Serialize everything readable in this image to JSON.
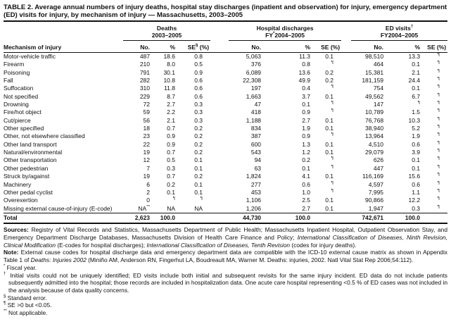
{
  "table": {
    "title": "TABLE 2. Average annual numbers of injury deaths, hospital stay discharges (inpatient and observation) for injury, emergency department (ED) visits for injury, by mechanism of injury — Massachusetts, 2003–2005",
    "row_header": "Mechanism of injury",
    "groups": [
      {
        "name": "deaths",
        "title": [
          {
            "t": "Deaths"
          }
        ],
        "subtitle": [
          {
            "t": "2003–2005"
          }
        ],
        "cols": [
          [
            {
              "t": "No."
            }
          ],
          [
            {
              "t": "%"
            }
          ],
          [
            {
              "t": "SE"
            },
            {
              "t": "§",
              "sup": true
            },
            {
              "t": " (%)"
            }
          ]
        ]
      },
      {
        "name": "hospital-discharges",
        "title": [
          {
            "t": "Hospital discharges"
          }
        ],
        "subtitle": [
          {
            "t": "FY"
          },
          {
            "t": "*",
            "sup": true
          },
          {
            "t": "2004–2005"
          }
        ],
        "cols": [
          [
            {
              "t": "No."
            }
          ],
          [
            {
              "t": "%"
            }
          ],
          [
            {
              "t": "SE (%)"
            }
          ]
        ]
      },
      {
        "name": "ed-visits",
        "title": [
          {
            "t": "ED visits"
          },
          {
            "t": "†",
            "sup": true
          }
        ],
        "subtitle": [
          {
            "t": "FY2004–2005"
          }
        ],
        "cols": [
          [
            {
              "t": "No."
            }
          ],
          [
            {
              "t": "%"
            }
          ],
          [
            {
              "t": "SE (%)"
            }
          ]
        ]
      }
    ],
    "rows": [
      [
        "Motor-vehicle traffic",
        "487",
        "18.6",
        "0.8",
        "5,063",
        "11.3",
        "0.1",
        "98,510",
        "13.3",
        "¶"
      ],
      [
        "Firearm",
        "210",
        "8.0",
        "0.5",
        "376",
        "0.8",
        "¶",
        "464",
        "0.1",
        "¶"
      ],
      [
        "Poisoning",
        "791",
        "30.1",
        "0.9",
        "6,089",
        "13.6",
        "0.2",
        "15,381",
        "2.1",
        "¶"
      ],
      [
        "Fall",
        "282",
        "10.8",
        "0.6",
        "22,308",
        "49.9",
        "0.2",
        "181,159",
        "24.4",
        "¶"
      ],
      [
        "Suffocation",
        "310",
        "11.8",
        "0.6",
        "197",
        "0.4",
        "¶",
        "754",
        "0.1",
        "¶"
      ],
      [
        "Not specified",
        "229",
        "8.7",
        "0.6",
        "1,663",
        "3.7",
        "0.1",
        "49,562",
        "6.7",
        "¶"
      ],
      [
        "Drowning",
        "72",
        "2.7",
        "0.3",
        "47",
        "0.1",
        "¶",
        "147",
        "¶",
        "¶"
      ],
      [
        "Fire/hot object",
        "59",
        "2.2",
        "0.3",
        "418",
        "0.9",
        "¶",
        "10,789",
        "1.5",
        "¶"
      ],
      [
        "Cut/pierce",
        "56",
        "2.1",
        "0.3",
        "1,188",
        "2.7",
        "0.1",
        "76,768",
        "10.3",
        "¶"
      ],
      [
        "Other specified",
        "18",
        "0.7",
        "0.2",
        "834",
        "1.9",
        "0.1",
        "38,940",
        "5.2",
        "¶"
      ],
      [
        "Other, not elsewhere classified",
        "23",
        "0.9",
        "0.2",
        "387",
        "0.9",
        "¶",
        "13,964",
        "1.9",
        "¶"
      ],
      [
        "Other land transport",
        "22",
        "0.9",
        "0.2",
        "600",
        "1.3",
        "0.1",
        "4,510",
        "0.6",
        "¶"
      ],
      [
        "Natural/environmental",
        "19",
        "0.7",
        "0.2",
        "543",
        "1.2",
        "0.1",
        "29,079",
        "3.9",
        "¶"
      ],
      [
        "Other transportation",
        "12",
        "0.5",
        "0.1",
        "94",
        "0.2",
        "¶",
        "626",
        "0.1",
        "¶"
      ],
      [
        "Other pedestrian",
        "7",
        "0.3",
        "0.1",
        "63",
        "0.1",
        "¶",
        "447",
        "0.1",
        "¶"
      ],
      [
        "Struck by/against",
        "19",
        "0.7",
        "0.2",
        "1,824",
        "4.1",
        "0.1",
        "116,169",
        "15.6",
        "¶"
      ],
      [
        "Machinery",
        "6",
        "0.2",
        "0.1",
        "277",
        "0.6",
        "¶",
        "4,597",
        "0.6",
        "¶"
      ],
      [
        "Other pedal cyclist",
        "2",
        "0.1",
        "0.1",
        "453",
        "1.0",
        "¶",
        "7,995",
        "1.1",
        "¶"
      ],
      [
        "Overexertion",
        "0",
        "¶",
        "¶",
        "1,106",
        "2.5",
        "0.1",
        "90,866",
        "12.2",
        "¶"
      ],
      [
        "Missing external cause-of-injury (E-code)",
        "NA**",
        "NA",
        "NA",
        "1,206",
        "2.7",
        "0.1",
        "1,947",
        "0.3",
        "¶"
      ]
    ],
    "total": [
      "Total",
      "2,623",
      "100.0",
      "",
      "44,730",
      "100.0",
      "",
      "742,671",
      "100.0",
      ""
    ]
  },
  "footnotes": [
    {
      "style": "para",
      "segs": [
        {
          "t": "Sources:",
          "b": true
        },
        {
          "t": " Registry of Vital Records and Statistics, Massachusetts Department of Public Health; Massachusetts Inpatient Hospital, Outpatient Observation Stay, and Emergency Department Discharge Databases, Massachusetts Division of Health Care Finance and Policy; "
        },
        {
          "t": "International Classification of Diseases, Ninth Revision, Clinical Modification",
          "i": true
        },
        {
          "t": " (E-codes for hospital discharges); "
        },
        {
          "t": "International Classification of Diseases, Tenth Revision",
          "i": true
        },
        {
          "t": " (codes for injury deaths)."
        }
      ]
    },
    {
      "style": "para",
      "segs": [
        {
          "t": "Note:",
          "b": true
        },
        {
          "t": " External cause codes for hospital discharge data and emergency department data are compatible with the ICD-10 external cause matrix as shown in Appendix Table 1 of "
        },
        {
          "t": "Deaths: Injuries 2002",
          "i": true
        },
        {
          "t": " (Miniño AM, Anderson RN, Fingerhut LA, Boudreault MA, Warner M. Deaths: injuries, 2002. Natl Vital Stat Rep 2006;54:112)."
        }
      ]
    },
    {
      "style": "hang",
      "segs": [
        {
          "t": "*",
          "sup": true
        },
        {
          "t": " Fiscal year."
        }
      ]
    },
    {
      "style": "hang",
      "segs": [
        {
          "t": "†",
          "sup": true
        },
        {
          "t": " Initial visits could not be uniquely identified; ED visits include both initial and subsequent revisits for the same injury incident. ED data do not include patients subsequently admitted into the hospital; those records are included in hospitalization data. One acute care hospital representing <0.5 % of ED cases was not included in the analysis because of data quality concerns."
        }
      ]
    },
    {
      "style": "hang",
      "segs": [
        {
          "t": "§",
          "sup": true
        },
        {
          "t": " Standard error."
        }
      ]
    },
    {
      "style": "hang",
      "segs": [
        {
          "t": "¶",
          "sup": true
        },
        {
          "t": " SE >0 but <0.05."
        }
      ]
    },
    {
      "style": "hang",
      "segs": [
        {
          "t": "**",
          "sup": true
        },
        {
          "t": " Not applicable."
        }
      ]
    }
  ]
}
